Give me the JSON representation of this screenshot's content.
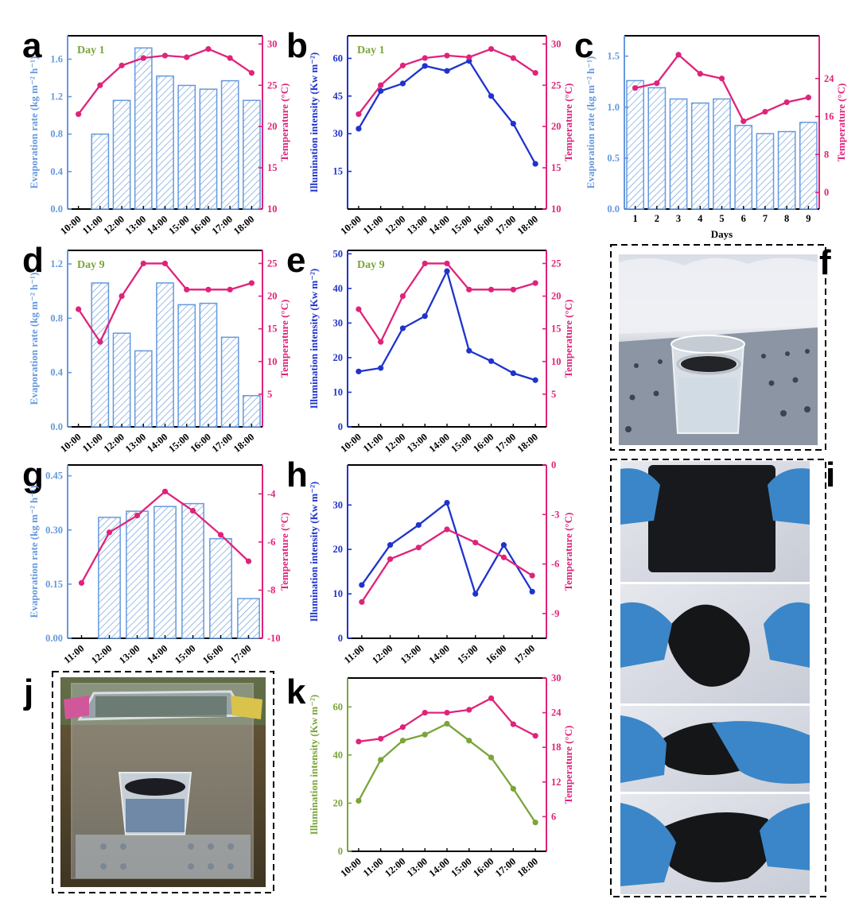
{
  "colors": {
    "evap": "#6699dd",
    "temp": "#e0237a",
    "illum_blue": "#1f33cc",
    "illum_green": "#7aa53a",
    "day": "#7aa53a"
  },
  "chart_data": [
    {
      "panel": "a",
      "type": "bar",
      "annotation": "Day 1",
      "categories": [
        "10:00",
        "11:00",
        "12:00",
        "13:00",
        "14:00",
        "15:00",
        "16:00",
        "17:00",
        "18:00"
      ],
      "series": [
        {
          "name": "Evaporation rate",
          "axis": "left",
          "type": "bar",
          "values": [
            null,
            0.8,
            1.16,
            1.72,
            1.42,
            1.32,
            1.28,
            1.37,
            1.16
          ]
        },
        {
          "name": "Temperature",
          "axis": "right",
          "type": "line",
          "values": [
            21.5,
            25.0,
            27.4,
            28.3,
            28.6,
            28.4,
            29.4,
            28.3,
            26.5
          ]
        }
      ],
      "ylabel": "Evaporation rate (kg m⁻² h⁻¹)",
      "y2label": "Temperature (°C)",
      "ylim": [
        0,
        1.85
      ],
      "yticks": [
        0.0,
        0.4,
        0.8,
        1.2,
        1.6
      ],
      "y2lim": [
        10,
        31
      ],
      "y2ticks": [
        10,
        15,
        20,
        25,
        30
      ],
      "ytick_labels": [
        "0.0",
        "0.4",
        "0.8",
        "1.2",
        "1.6"
      ],
      "y2tick_labels": [
        "10",
        "15",
        "20",
        "25",
        "30"
      ],
      "grid": false
    },
    {
      "panel": "b",
      "type": "line",
      "annotation": "Day 1",
      "categories": [
        "10:00",
        "11:00",
        "12:00",
        "13:00",
        "14:00",
        "15:00",
        "16:00",
        "17:00",
        "18:00"
      ],
      "series": [
        {
          "name": "Illumination intensity",
          "axis": "left",
          "type": "line",
          "values": [
            32,
            47,
            50,
            57,
            55,
            59,
            45,
            34,
            18
          ]
        },
        {
          "name": "Temperature",
          "axis": "right",
          "type": "line",
          "values": [
            21.5,
            25.0,
            27.4,
            28.3,
            28.6,
            28.4,
            29.4,
            28.3,
            26.5
          ]
        }
      ],
      "ylabel": "Illumination intensity (Kw m⁻²)",
      "y2label": "Temperature (°C)",
      "ylim": [
        0,
        69
      ],
      "yticks": [
        15,
        30,
        45,
        60
      ],
      "y2lim": [
        10,
        31
      ],
      "y2ticks": [
        10,
        15,
        20,
        25,
        30
      ],
      "ytick_labels": [
        "15",
        "30",
        "45",
        "60"
      ],
      "y2tick_labels": [
        "10",
        "15",
        "20",
        "25",
        "30"
      ],
      "grid": false
    },
    {
      "panel": "c",
      "type": "bar",
      "categories": [
        "1",
        "2",
        "3",
        "4",
        "5",
        "6",
        "7",
        "8",
        "9"
      ],
      "series": [
        {
          "name": "Evaporation rate",
          "axis": "left",
          "type": "bar",
          "values": [
            1.26,
            1.19,
            1.08,
            1.04,
            1.08,
            0.82,
            0.74,
            0.76,
            0.85
          ]
        },
        {
          "name": "Temperature",
          "axis": "right",
          "type": "line",
          "values": [
            22,
            23,
            29,
            25,
            24,
            15,
            17,
            19,
            20
          ]
        }
      ],
      "xlabel": "Days",
      "ylabel": "Evaporation rate (kg m⁻² h⁻¹)",
      "y2label": "Temperature (°C)",
      "ylim": [
        0,
        1.7
      ],
      "yticks": [
        0.0,
        0.5,
        1.0,
        1.5
      ],
      "y2lim": [
        -3.5,
        33
      ],
      "y2ticks": [
        0,
        8,
        16,
        24
      ],
      "ytick_labels": [
        "0.0",
        "0.5",
        "1.0",
        "1.5"
      ],
      "y2tick_labels": [
        "0",
        "8",
        "16",
        "24"
      ],
      "grid": false
    },
    {
      "panel": "d",
      "type": "bar",
      "annotation": "Day 9",
      "categories": [
        "10:00",
        "11:00",
        "12:00",
        "13:00",
        "14:00",
        "15:00",
        "16:00",
        "17:00",
        "18:00"
      ],
      "series": [
        {
          "name": "Evaporation rate",
          "axis": "left",
          "type": "bar",
          "values": [
            null,
            1.06,
            0.69,
            0.56,
            1.06,
            0.9,
            0.91,
            0.66,
            0.23
          ]
        },
        {
          "name": "Temperature",
          "axis": "right",
          "type": "line",
          "values": [
            18,
            13,
            20,
            25,
            25,
            21,
            21,
            21,
            22
          ]
        }
      ],
      "ylabel": "Evaporation rate (kg m⁻² h⁻¹)",
      "y2label": "Temperature (°C)",
      "ylim": [
        0,
        1.3
      ],
      "yticks": [
        0.0,
        0.4,
        0.8,
        1.2
      ],
      "y2lim": [
        0,
        27
      ],
      "y2ticks": [
        5,
        10,
        15,
        20,
        25
      ],
      "ytick_labels": [
        "0.0",
        "0.4",
        "0.8",
        "1.2"
      ],
      "y2tick_labels": [
        "5",
        "10",
        "15",
        "20",
        "25"
      ],
      "grid": false
    },
    {
      "panel": "e",
      "type": "line",
      "annotation": "Day 9",
      "categories": [
        "10:00",
        "11:00",
        "12:00",
        "13:00",
        "14:00",
        "15:00",
        "16:00",
        "17:00",
        "18:00"
      ],
      "series": [
        {
          "name": "Illumination intensity",
          "axis": "left",
          "type": "line",
          "values": [
            16,
            17,
            28.5,
            32,
            45,
            22,
            19,
            15.5,
            13.5
          ]
        },
        {
          "name": "Temperature",
          "axis": "right",
          "type": "line",
          "values": [
            18,
            13,
            20,
            25,
            25,
            21,
            21,
            21,
            22
          ]
        }
      ],
      "ylabel": "Illumination intensity (Kw m⁻²)",
      "y2label": "Temperature (°C)",
      "ylim": [
        0,
        51
      ],
      "yticks": [
        0,
        10,
        20,
        30,
        40,
        50
      ],
      "y2lim": [
        0,
        27
      ],
      "y2ticks": [
        5,
        10,
        15,
        20,
        25
      ],
      "ytick_labels": [
        "0",
        "10",
        "20",
        "30",
        "40",
        "50"
      ],
      "y2tick_labels": [
        "5",
        "10",
        "15",
        "20",
        "25"
      ],
      "grid": false
    },
    {
      "panel": "g",
      "type": "bar",
      "categories": [
        "11:00",
        "12:00",
        "13:00",
        "14:00",
        "15:00",
        "16:00",
        "17:00"
      ],
      "series": [
        {
          "name": "Evaporation rate",
          "axis": "left",
          "type": "bar",
          "values": [
            null,
            0.335,
            0.352,
            0.365,
            0.373,
            0.276,
            0.11
          ]
        },
        {
          "name": "Temperature",
          "axis": "right",
          "type": "line",
          "values": [
            -7.7,
            -5.6,
            -4.9,
            -3.9,
            -4.7,
            -5.7,
            -6.8
          ]
        }
      ],
      "ylabel": "Evaporation rate (kg m⁻² h⁻¹)",
      "y2label": "Temperature (°C)",
      "ylim": [
        0,
        0.48
      ],
      "yticks": [
        0.0,
        0.15,
        0.3,
        0.45
      ],
      "y2lim": [
        -10,
        -2.8
      ],
      "y2ticks": [
        -10,
        -8,
        -6,
        -4
      ],
      "ytick_labels": [
        "0.00",
        "0.15",
        "0.30",
        "0.45"
      ],
      "y2tick_labels": [
        "-10",
        "-8",
        "-6",
        "-4"
      ],
      "grid": false
    },
    {
      "panel": "h",
      "type": "line",
      "categories": [
        "11:00",
        "12:00",
        "13:00",
        "14:00",
        "15:00",
        "16:00",
        "17:00"
      ],
      "series": [
        {
          "name": "Illumination intensity",
          "axis": "left",
          "type": "line",
          "values": [
            12,
            21,
            25.5,
            30.5,
            10,
            21,
            10.5
          ]
        },
        {
          "name": "Temperature",
          "axis": "right",
          "type": "line",
          "values": [
            -8.3,
            -5.7,
            -5.0,
            -3.9,
            -4.7,
            -5.6,
            -6.7
          ]
        }
      ],
      "ylabel": "Illumination intensity (Kw m⁻²)",
      "y2label": "Temperature (°C)",
      "ylim": [
        0,
        39
      ],
      "yticks": [
        0,
        10,
        20,
        30
      ],
      "y2lim": [
        -10.5,
        0
      ],
      "y2ticks": [
        -9,
        -6,
        -3,
        0
      ],
      "ytick_labels": [
        "0",
        "10",
        "20",
        "30"
      ],
      "y2tick_labels": [
        "-9",
        "-6",
        "-3",
        "0"
      ],
      "grid": false
    },
    {
      "panel": "k",
      "type": "line",
      "categories": [
        "10:00",
        "11:00",
        "12:00",
        "13:00",
        "14:00",
        "15:00",
        "16:00",
        "17:00",
        "18:00"
      ],
      "series": [
        {
          "name": "Illumination intensity",
          "axis": "left",
          "type": "line",
          "values": [
            21,
            38,
            46,
            48.5,
            53,
            46,
            39,
            26,
            12
          ]
        },
        {
          "name": "Temperature",
          "axis": "right",
          "type": "line",
          "values": [
            19,
            19.5,
            21.5,
            24,
            24,
            24.5,
            26.5,
            22,
            20
          ]
        }
      ],
      "ylabel": "Illumination intensity (Kw m⁻²)",
      "y2label": "Temperature (°C)",
      "ylim": [
        0,
        72
      ],
      "yticks": [
        0,
        20,
        40,
        60
      ],
      "y2lim": [
        0,
        30
      ],
      "y2ticks": [
        6,
        12,
        18,
        24,
        30
      ],
      "ytick_labels": [
        "0",
        "20",
        "40",
        "60"
      ],
      "y2tick_labels": [
        "6",
        "12",
        "18",
        "24",
        "30"
      ],
      "grid": false
    }
  ],
  "panel_labels": [
    "a",
    "b",
    "c",
    "d",
    "e",
    "f",
    "g",
    "h",
    "i",
    "j",
    "k"
  ]
}
